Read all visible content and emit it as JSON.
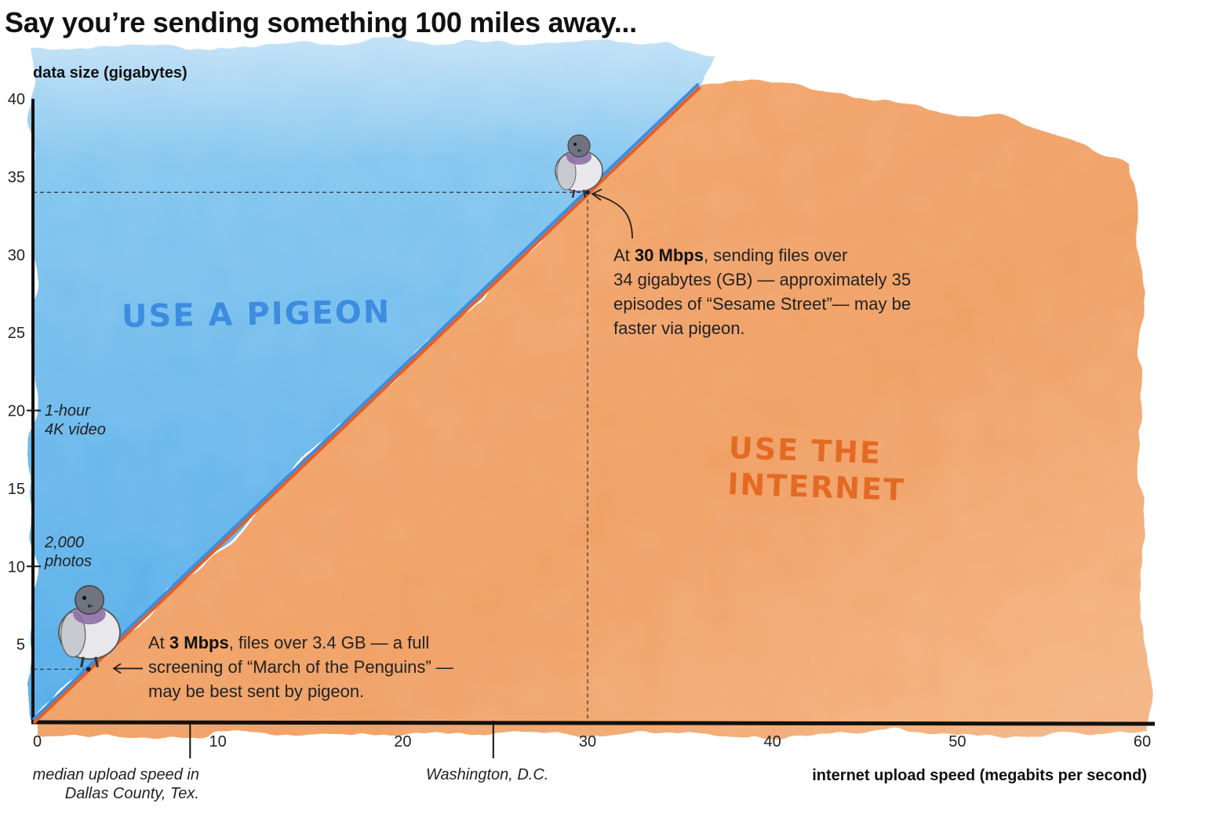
{
  "title": "Say you’re sending something 100 miles away...",
  "chart_data": {
    "type": "area",
    "ylabel": "data size (gigabytes)",
    "xlabel": "internet upload speed (megabits per second)",
    "xlim": [
      0,
      60
    ],
    "ylim": [
      0,
      40
    ],
    "x_ticks": [
      0,
      10,
      20,
      30,
      40,
      50,
      60
    ],
    "y_ticks": [
      5,
      10,
      15,
      20,
      25,
      30,
      35,
      40
    ],
    "tick_labels_x": [
      "0",
      "10",
      "20",
      "30",
      "40",
      "50",
      "60"
    ],
    "tick_labels_y": [
      "5",
      "10",
      "15",
      "20",
      "25",
      "30",
      "35",
      "40"
    ],
    "breakeven_line": {
      "x": [
        0,
        36
      ],
      "y": [
        0,
        40.8
      ]
    },
    "regions": [
      {
        "label": "USE A PIGEON",
        "color": "#5fb3ec"
      },
      {
        "label_line1": "USE THE",
        "label_line2": "INTERNET",
        "color": "#f09a5a"
      }
    ],
    "highlight_points": [
      {
        "x": 3,
        "y": 3.4
      },
      {
        "x": 30,
        "y": 34
      }
    ],
    "y_markers": [
      {
        "value": 20,
        "label_line1": "1-hour",
        "label_line2": "4K video"
      },
      {
        "value": 10,
        "label_line1": "2,000",
        "label_line2": "photos"
      }
    ],
    "x_markers": [
      {
        "value": 8.5,
        "label_line1": "median upload speed in",
        "label_line2": "Dallas County, Tex."
      },
      {
        "value": 24.9,
        "label_line1": "Washington, D.C.",
        "label_line2": ""
      }
    ]
  },
  "notes": {
    "high": {
      "pre": "At ",
      "bold": "30 Mbps",
      "line1_rest": ", sending files over",
      "line2": "34 gigabytes (GB) — approximately 35",
      "line3": "episodes of “Sesame Street”— may be",
      "line4": "faster via pigeon."
    },
    "low": {
      "pre": "At ",
      "bold": "3 Mbps",
      "line1_rest": ", files over 3.4 GB — a full",
      "line2": "screening of “March of the Penguins” —",
      "line3": "may be best sent by pigeon."
    }
  },
  "colors": {
    "pigeon_region": "#5fb3ec",
    "internet_region": "#f09a5a",
    "line_blue": "#3c8de0",
    "line_orange": "#e0602a",
    "axis": "#111111"
  }
}
